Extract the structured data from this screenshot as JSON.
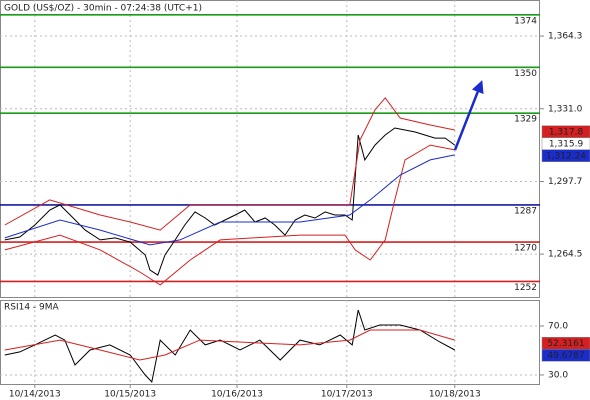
{
  "chart_data": [
    {
      "type": "line",
      "title": "GOLD (US$/OZ) - 30min - 07:24:38 (UTC+1)",
      "xlim": [
        0,
        90
      ],
      "ylim": [
        1244.4,
        1380.8
      ],
      "yticks": [
        {
          "value": 1264.5,
          "label": "1,264.5"
        },
        {
          "value": 1297.7,
          "label": "1,297.7"
        },
        {
          "value": 1331.0,
          "label": "1,331.0"
        },
        {
          "value": 1364.3,
          "label": "1,364.3"
        }
      ],
      "grid": true,
      "series": [
        {
          "color": "#000000",
          "x": [
            0.8,
            3.3,
            5.8,
            8.3,
            10,
            11.7,
            14.2,
            16.7,
            19.2,
            21.7,
            24.2,
            25,
            26.3,
            27.5,
            29.2,
            30.8,
            32.5,
            34.2,
            35.8,
            37.5,
            39.2,
            40.8,
            42.5,
            44.2,
            45.8,
            47.5,
            49.2,
            50.8,
            52.5,
            54.2,
            55.8,
            57.5,
            58.7,
            59.7,
            60.8,
            62.5,
            64.2,
            65.8,
            67.5,
            69.2,
            70.8,
            72.5,
            74.2,
            75.8
          ],
          "values": [
            1271.0,
            1272.3,
            1277.8,
            1284.7,
            1287.0,
            1282.4,
            1275.5,
            1271.0,
            1271.9,
            1270.0,
            1264.1,
            1257.2,
            1254.9,
            1264.1,
            1271.0,
            1277.8,
            1283.8,
            1281.0,
            1277.8,
            1280.1,
            1282.4,
            1284.7,
            1279.2,
            1281.0,
            1277.8,
            1273.2,
            1280.1,
            1282.4,
            1281.0,
            1283.8,
            1282.4,
            1282.4,
            1280.1,
            1319.0,
            1307.6,
            1314.4,
            1319.0,
            1322.2,
            1321.3,
            1320.4,
            1319.0,
            1317.6,
            1317.6,
            1314.4
          ]
        },
        {
          "color": "#d42020",
          "x": [
            0.8,
            8.3,
            16.7,
            21.7,
            26.7,
            31.7,
            41.7,
            55,
            58.3,
            60,
            62.5,
            64.2,
            66.7,
            71.7,
            75.8
          ],
          "values": [
            1277.8,
            1289.3,
            1282.4,
            1279.2,
            1275.5,
            1287.0,
            1287.0,
            1287.0,
            1287.0,
            1316.7,
            1330.5,
            1336.0,
            1326.8,
            1323.6,
            1321.3
          ]
        },
        {
          "color": "#d42020",
          "x": [
            0.8,
            10,
            16.7,
            23.3,
            26.7,
            31.7,
            36.7,
            50,
            57.5,
            59.2,
            61.7,
            64.2,
            65.8,
            67.5,
            71.7,
            75.8
          ],
          "values": [
            1266.4,
            1273.2,
            1266.4,
            1256.3,
            1250.4,
            1261.8,
            1271.0,
            1273.2,
            1273.2,
            1266.4,
            1261.8,
            1271.0,
            1289.3,
            1307.6,
            1314.4,
            1312.2
          ]
        },
        {
          "color": "#1a2ccc",
          "x": [
            0.8,
            10,
            16.7,
            25,
            30,
            36.7,
            50,
            58.3,
            61.7,
            66.7,
            71.7,
            75.8
          ],
          "values": [
            1271.9,
            1280.1,
            1275.5,
            1268.7,
            1271.0,
            1279.2,
            1279.2,
            1282.4,
            1289.3,
            1300.7,
            1307.6,
            1309.9
          ]
        }
      ],
      "levels": [
        {
          "value": 1374,
          "color": "#1a9a1a"
        },
        {
          "value": 1350,
          "color": "#1a9a1a"
        },
        {
          "value": 1329,
          "color": "#1a9a1a"
        },
        {
          "value": 1287,
          "color": "#1a1aa0"
        },
        {
          "value": 1270,
          "color": "#d42020"
        },
        {
          "value": 1252,
          "color": "#d42020"
        }
      ],
      "badges": [
        {
          "value": 1317.8,
          "label": "1,317.8",
          "color": "#d42020",
          "text_color": "#ffffff"
        },
        {
          "value": 1315.9,
          "label": "1,315.9",
          "color": "#ffffff",
          "text_color": "#000000"
        },
        {
          "value": 1312.24,
          "label": "1,312.24",
          "color": "#1a2ccc",
          "text_color": "#ffffff"
        }
      ]
    },
    {
      "type": "line",
      "title": "RSI14 - 9MA",
      "xlim": [
        0,
        90
      ],
      "ylim": [
        21.8,
        91.2
      ],
      "yticks": [
        {
          "value": 30,
          "label": "30.0"
        },
        {
          "value": 70,
          "label": "70.0"
        }
      ],
      "xticks": [
        {
          "value": 5.8,
          "label": "10/14/2013"
        },
        {
          "value": 21.7,
          "label": "10/15/2013"
        },
        {
          "value": 39.5,
          "label": "10/16/2013"
        },
        {
          "value": 57.8,
          "label": "10/17/2013"
        },
        {
          "value": 75.8,
          "label": "10/18/2013"
        }
      ],
      "grid": true,
      "series": [
        {
          "color": "#000000",
          "x": [
            0.8,
            3.3,
            5.8,
            9.2,
            10.8,
            12.5,
            15,
            18.3,
            21.7,
            24.2,
            25.3,
            26.7,
            29.2,
            31.7,
            34.2,
            36.7,
            40,
            43.3,
            46.7,
            50,
            53.3,
            56.7,
            58.7,
            59.7,
            60.8,
            63.3,
            66.7,
            70,
            73.3,
            75.8
          ],
          "values": [
            46.3,
            48.8,
            54.5,
            62.6,
            58.5,
            38.1,
            50.4,
            54.5,
            46.3,
            30.0,
            24.3,
            58.5,
            46.3,
            66.7,
            54.5,
            58.5,
            50.4,
            58.5,
            42.2,
            58.5,
            54.5,
            62.6,
            54.5,
            83.0,
            66.7,
            70.8,
            70.8,
            66.7,
            56.9,
            50.4
          ]
        },
        {
          "color": "#d42020",
          "x": [
            0.8,
            10,
            16.7,
            23.3,
            27.5,
            33.3,
            50,
            58.3,
            61.7,
            70,
            75.8
          ],
          "values": [
            50.4,
            58.5,
            50.4,
            42.2,
            46.3,
            58.5,
            54.5,
            58.5,
            66.7,
            66.7,
            58.5
          ]
        }
      ],
      "badges": [
        {
          "value": 52.3161,
          "label": "52.3161",
          "color": "#d42020",
          "text_color": "#ffffff"
        },
        {
          "value": 49.6787,
          "label": "49.6787",
          "color": "#1a2ccc",
          "text_color": "#ffffff"
        }
      ]
    }
  ]
}
